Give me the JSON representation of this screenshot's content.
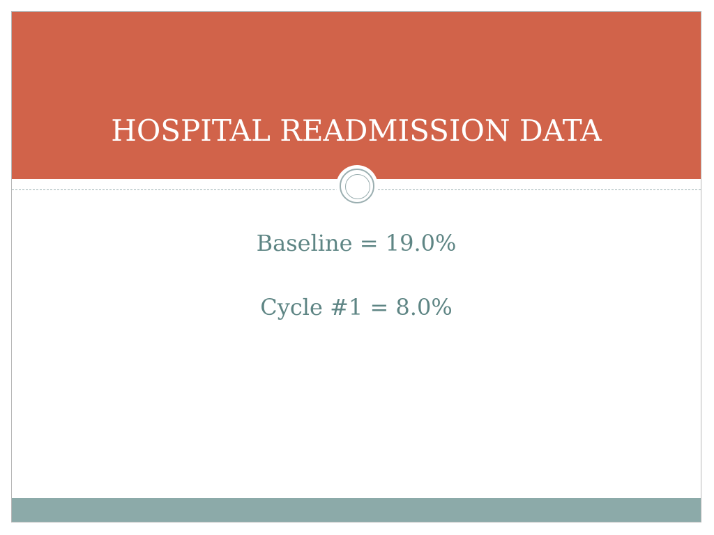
{
  "slide": {
    "title": "HOSPITAL READMISSION DATA",
    "body_lines": [
      "Baseline = 19.0%",
      "Cycle #1 = 8.0%"
    ]
  },
  "colors": {
    "header": "#d1634a",
    "title_text": "#ffffff",
    "body_text": "#5e8584",
    "footer": "#8caaa9",
    "ornament": "#9aaeb0"
  }
}
